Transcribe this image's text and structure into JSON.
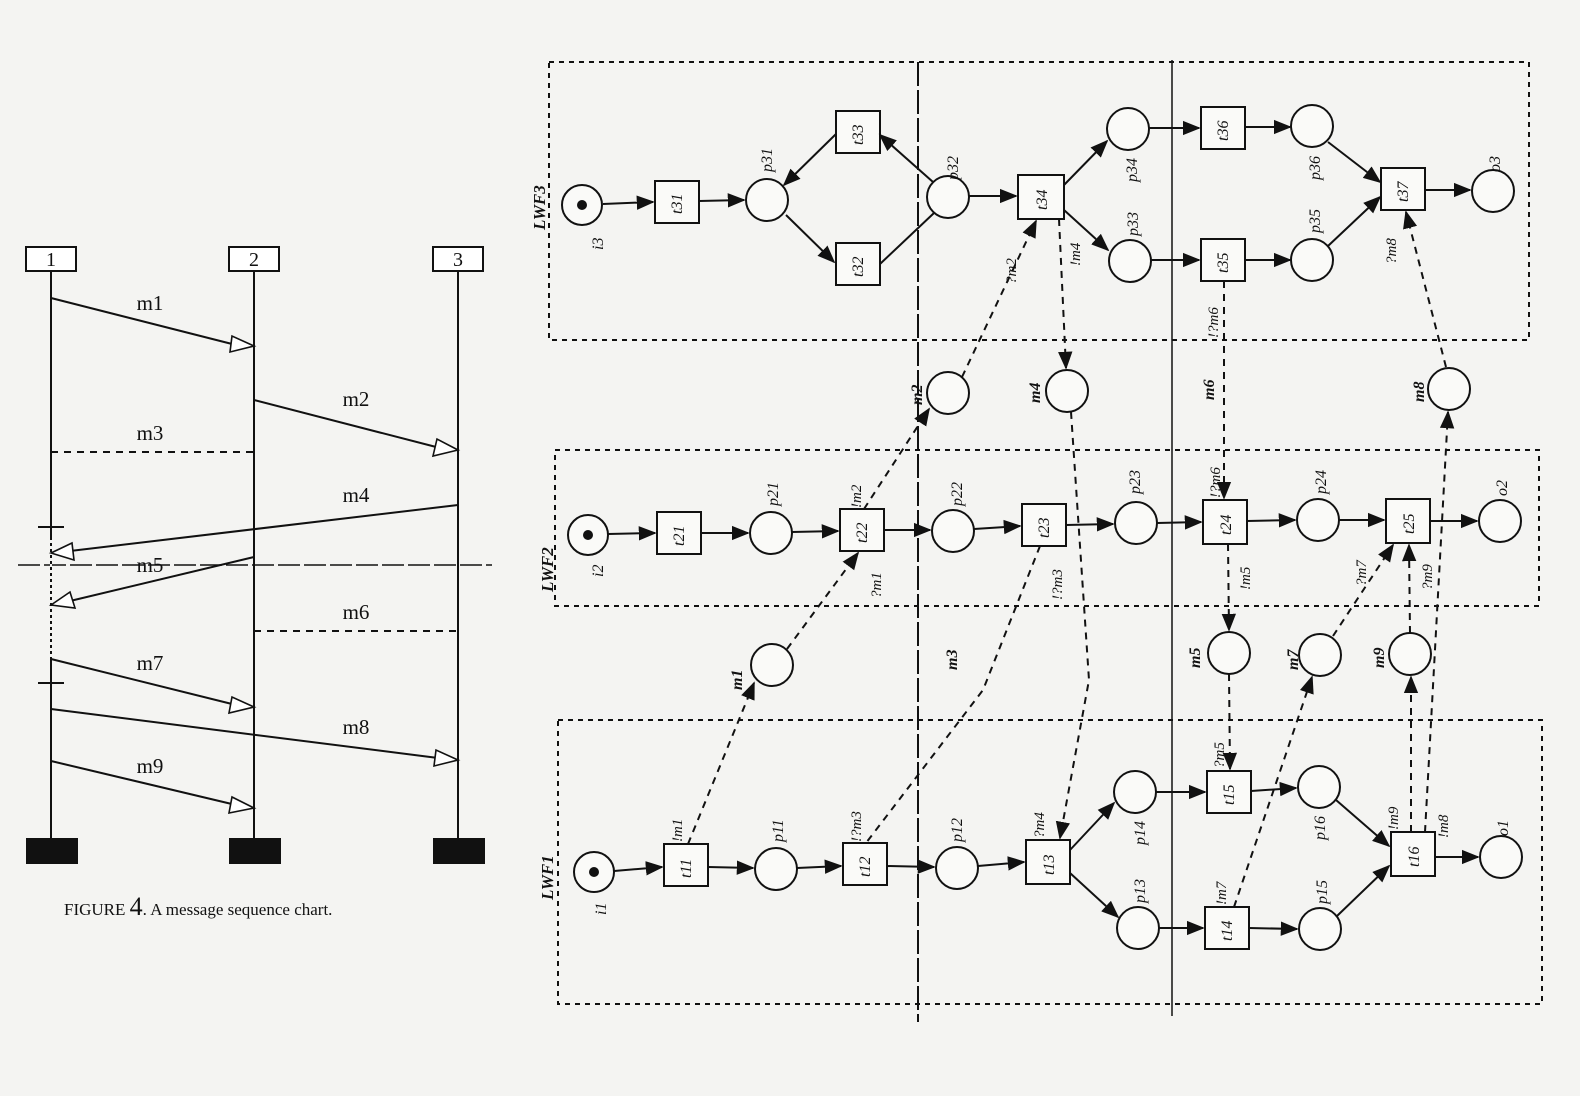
{
  "msc": {
    "instances": [
      "1",
      "2",
      "3"
    ],
    "messages": [
      "m1",
      "m2",
      "m3",
      "m4",
      "m5",
      "m6",
      "m7",
      "m8",
      "m9"
    ],
    "caption_prefix": "FIGURE ",
    "caption_number": "4",
    "caption_text": ". A message sequence chart."
  },
  "petri": {
    "workflows": [
      "LWF1",
      "LWF2",
      "LWF3"
    ],
    "places": {
      "i1": "i1",
      "p11": "p11",
      "p12": "p12",
      "p13": "p13",
      "p14": "p14",
      "p15": "p15",
      "p16": "p16",
      "o1": "o1",
      "i2": "i2",
      "p21": "p21",
      "p22": "p22",
      "p23": "p23",
      "p24": "p24",
      "o2": "o2",
      "i3": "i3",
      "p31": "p31",
      "p32": "p32",
      "p33": "p33",
      "p34": "p34",
      "p35": "p35",
      "p36": "p36",
      "o3": "o3"
    },
    "transitions": {
      "t11": "t11",
      "t12": "t12",
      "t13": "t13",
      "t14": "t14",
      "t15": "t15",
      "t16": "t16",
      "t21": "t21",
      "t22": "t22",
      "t23": "t23",
      "t24": "t24",
      "t25": "t25",
      "t31": "t31",
      "t32": "t32",
      "t33": "t33",
      "t34": "t34",
      "t35": "t35",
      "t36": "t36",
      "t37": "t37"
    },
    "message_places": [
      "m1",
      "m2",
      "m3",
      "m4",
      "m5",
      "m6",
      "m7",
      "m8",
      "m9"
    ],
    "annotations": {
      "t11": "!m1",
      "t12": "!?m3",
      "t13": "?m4",
      "t14": "!m7",
      "t15": "?m5",
      "t16a": "!m9",
      "t16b": "!m8",
      "t22a": "!m2",
      "t22b": "?m1",
      "t23": "!?m3",
      "t24a": "!?m6",
      "t24b": "!m5",
      "t25a": "?m7",
      "t25b": "?m9",
      "t34a": "?m2",
      "t34b": "!m4",
      "t35": "!?m6",
      "t37": "?m8"
    }
  }
}
